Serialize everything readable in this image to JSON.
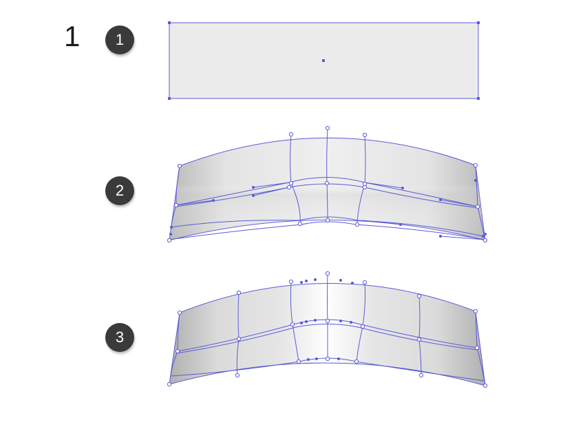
{
  "step": {
    "number": "1"
  },
  "badges": [
    {
      "label": "1"
    },
    {
      "label": "2"
    },
    {
      "label": "3"
    }
  ],
  "colors": {
    "mesh_line": "#5a5ad8",
    "fill_light": "#ececec",
    "badge_bg": "#3a3a3a"
  }
}
